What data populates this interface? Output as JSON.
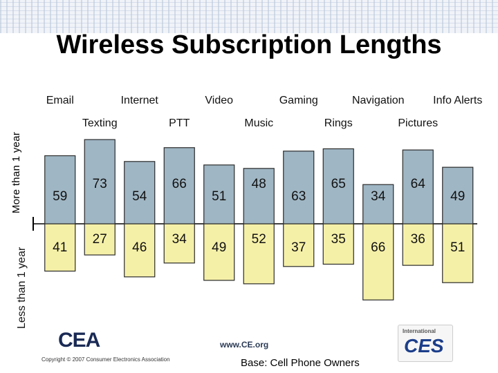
{
  "header": {
    "title": "Wireless Subscription Lengths"
  },
  "axis_labels": {
    "more": "More than 1 year",
    "less": "Less than 1 year"
  },
  "footer": {
    "logo": "CEA",
    "copyright": "Copyright © 2007 Consumer Electronics Association",
    "website": "www.CE.org",
    "base_note": "Base: Cell Phone Owners",
    "badge_top": "International",
    "badge_logo": "CES"
  },
  "colors": {
    "top_fill": "#9fb6c4",
    "bottom_fill": "#f5f0a8",
    "edge": "#2a2a2a"
  },
  "chart_data": {
    "type": "bar",
    "stacked": true,
    "title": "Wireless Subscription Lengths",
    "categories": [
      "Email",
      "Texting",
      "Internet",
      "PTT",
      "Video",
      "Music",
      "Gaming",
      "Rings",
      "Navigation",
      "Pictures",
      "Info Alerts"
    ],
    "series": [
      {
        "name": "More than 1 year",
        "values": [
          59,
          73,
          54,
          66,
          51,
          48,
          63,
          65,
          34,
          64,
          49
        ]
      },
      {
        "name": "Less than 1 year",
        "values": [
          41,
          27,
          46,
          34,
          49,
          52,
          37,
          35,
          66,
          36,
          51
        ]
      }
    ],
    "ylim": [
      0,
      100
    ]
  }
}
